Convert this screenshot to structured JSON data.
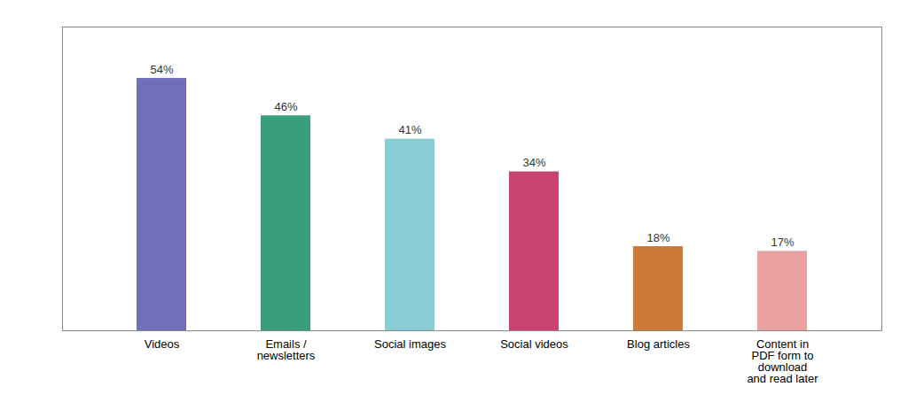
{
  "chart_data": {
    "type": "bar",
    "categories": [
      "Videos",
      "Emails /\nnewsletters",
      "Social images",
      "Social videos",
      "Blog articles",
      "Content in\nPDF form to\ndownload\nand read later"
    ],
    "values": [
      54,
      46,
      41,
      34,
      18,
      17
    ],
    "value_labels": [
      "54%",
      "46%",
      "41%",
      "34%",
      "18%",
      "17%"
    ],
    "colors": [
      "#7070b8",
      "#3a9e7e",
      "#88cdd4",
      "#c74470",
      "#cc7a3a",
      "#e8a0a0"
    ],
    "ylim": [
      0,
      65
    ],
    "data_labels": true,
    "tick_labels": "x",
    "grid": false
  }
}
